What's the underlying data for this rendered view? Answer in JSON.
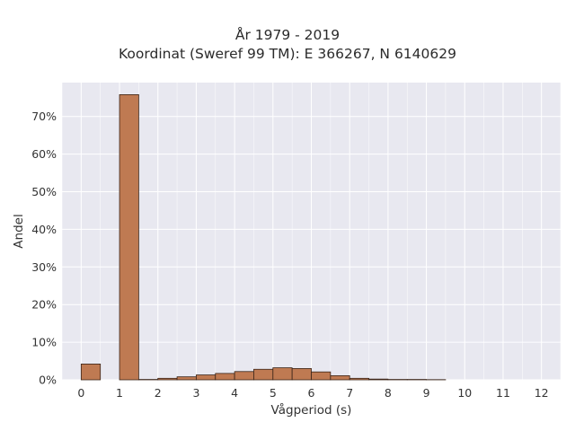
{
  "chart_data": {
    "type": "bar",
    "title_line1": "År 1979 - 2019",
    "title_line2": "Koordinat (Sweref 99 TM): E 366267, N 6140629",
    "xlabel": "Vågperiod (s)",
    "ylabel": "Andel",
    "xlim": [
      -0.5,
      12.5
    ],
    "ylim": [
      0,
      0.79
    ],
    "xticks": [
      0,
      1,
      2,
      3,
      4,
      5,
      6,
      7,
      8,
      9,
      10,
      11,
      12
    ],
    "yticks": [
      0,
      0.1,
      0.2,
      0.3,
      0.4,
      0.5,
      0.6,
      0.7
    ],
    "ytick_labels": [
      "0%",
      "10%",
      "20%",
      "30%",
      "40%",
      "50%",
      "60%",
      "70%"
    ],
    "bin_width": 0.5,
    "bins": [
      {
        "x0": 0.0,
        "value": 0.042
      },
      {
        "x0": 1.0,
        "value": 0.758
      },
      {
        "x0": 1.5,
        "value": 0.001
      },
      {
        "x0": 2.0,
        "value": 0.004
      },
      {
        "x0": 2.5,
        "value": 0.008
      },
      {
        "x0": 3.0,
        "value": 0.013
      },
      {
        "x0": 3.5,
        "value": 0.017
      },
      {
        "x0": 4.0,
        "value": 0.022
      },
      {
        "x0": 4.5,
        "value": 0.028
      },
      {
        "x0": 5.0,
        "value": 0.032
      },
      {
        "x0": 5.5,
        "value": 0.03
      },
      {
        "x0": 6.0,
        "value": 0.021
      },
      {
        "x0": 6.5,
        "value": 0.011
      },
      {
        "x0": 7.0,
        "value": 0.004
      },
      {
        "x0": 7.5,
        "value": 0.002
      },
      {
        "x0": 8.0,
        "value": 0.001
      },
      {
        "x0": 8.5,
        "value": 0.001
      },
      {
        "x0": 9.0,
        "value": 0.0005
      }
    ],
    "bar_color": "#bf7a52",
    "bar_edge_color": "#3a2418",
    "plot_background": "#e8e8f0",
    "grid": true,
    "grid_color": "#ffffff"
  }
}
